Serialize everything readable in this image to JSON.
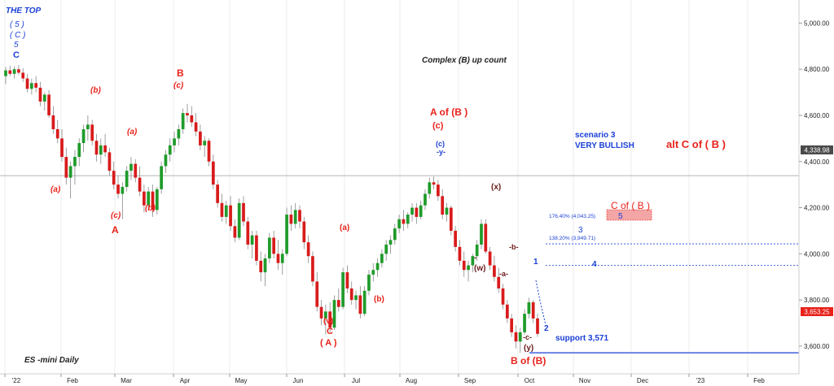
{
  "chart_data": {
    "type": "candlestick",
    "instrument_label": "ES -mini Daily",
    "heading": "Complex (B) up count",
    "y_axis": {
      "ticks": [
        "5,000.00",
        "4,800.00",
        "4,600.00",
        "4,400.00",
        "4,200.00",
        "4,000.00",
        "3,800.00",
        "3,600.00"
      ],
      "ylim": [
        3480,
        5100
      ],
      "tick_values": [
        5000,
        4800,
        4600,
        4400,
        4200,
        4000,
        3800,
        3600
      ]
    },
    "x_axis": {
      "labels": [
        "'22",
        "Feb",
        "Mar",
        "Apr",
        "May",
        "Jun",
        "Jul",
        "Aug",
        "Sep",
        "Oct",
        "Nov",
        "Dec",
        "'23",
        "Feb"
      ]
    },
    "price_tags": [
      {
        "value": 4338.98,
        "label": "4,338.98",
        "color": "#4a4a4a"
      },
      {
        "value": 3653.25,
        "label": "3,653.25",
        "color": "#e8221b"
      }
    ],
    "support_line": {
      "value": 3571,
      "label": "support 3,571",
      "color": "#1a3fd6"
    },
    "fib_levels": [
      {
        "value": 4043.25,
        "label": "176.40% (4,043.25)"
      },
      {
        "value": 3949.71,
        "label": "138.20% (3,949.71)"
      }
    ],
    "target_box_label": "C of ( B )",
    "target_box_wave": "5",
    "scenario": {
      "line1": "scenario 3",
      "line2": "VERY BULLISH"
    },
    "alt_label": "alt C of ( B )",
    "projected_waves": [
      "1",
      "2",
      "3",
      "4",
      "5"
    ],
    "top_labels": [
      "THE TOP",
      "( 5 )",
      "( C )",
      "5",
      "C"
    ],
    "wave_labels": {
      "b_small_1": "(b)",
      "a_small_1": "(a)",
      "A_big": "A",
      "c_small_1": "(c)",
      "a_small_2": "(a)",
      "b_small_2": "(b)",
      "B_big": "B",
      "c_small_2": "(c)",
      "a_small_3": "(a)",
      "v_small": "(v)",
      "C_big": "C",
      "A_paren": "( A )",
      "b_small_3": "(b)",
      "c_small_blue": "(c)",
      "y_small": "-y-",
      "AofB": "A of (B )",
      "c_small_3": "(c)",
      "x_small": "(x)",
      "w_small": "(w)",
      "w_dash": "-",
      "b_dash": "-b-",
      "a_dash": "-a-",
      "c_dash": "-c-",
      "y_paren": "(y)",
      "BofB": "B of (B)"
    },
    "colors": {
      "up": "#1f9b2a",
      "down": "#d81b1b",
      "wick": "#888888",
      "red_label": "#e8221b",
      "blue_label": "#1a3fd6",
      "dark_label": "#6a1a1a"
    },
    "ohlc_sample_note": "",
    "candles": [
      {
        "o": 4770,
        "h": 4810,
        "l": 4735,
        "c": 4795
      },
      {
        "o": 4795,
        "h": 4815,
        "l": 4770,
        "c": 4780
      },
      {
        "o": 4780,
        "h": 4812,
        "l": 4760,
        "c": 4800
      },
      {
        "o": 4800,
        "h": 4818,
        "l": 4775,
        "c": 4785
      },
      {
        "o": 4785,
        "h": 4805,
        "l": 4745,
        "c": 4760
      },
      {
        "o": 4760,
        "h": 4780,
        "l": 4700,
        "c": 4715
      },
      {
        "o": 4715,
        "h": 4760,
        "l": 4690,
        "c": 4740
      },
      {
        "o": 4740,
        "h": 4770,
        "l": 4700,
        "c": 4720
      },
      {
        "o": 4720,
        "h": 4745,
        "l": 4640,
        "c": 4660
      },
      {
        "o": 4660,
        "h": 4700,
        "l": 4620,
        "c": 4690
      },
      {
        "o": 4690,
        "h": 4710,
        "l": 4590,
        "c": 4600
      },
      {
        "o": 4600,
        "h": 4640,
        "l": 4520,
        "c": 4540
      },
      {
        "o": 4540,
        "h": 4580,
        "l": 4480,
        "c": 4500
      },
      {
        "o": 4500,
        "h": 4540,
        "l": 4400,
        "c": 4420
      },
      {
        "o": 4420,
        "h": 4460,
        "l": 4300,
        "c": 4330
      },
      {
        "o": 4330,
        "h": 4400,
        "l": 4240,
        "c": 4380
      },
      {
        "o": 4380,
        "h": 4450,
        "l": 4300,
        "c": 4420
      },
      {
        "o": 4420,
        "h": 4500,
        "l": 4380,
        "c": 4480
      },
      {
        "o": 4480,
        "h": 4560,
        "l": 4440,
        "c": 4540
      },
      {
        "o": 4540,
        "h": 4600,
        "l": 4490,
        "c": 4560
      },
      {
        "o": 4560,
        "h": 4580,
        "l": 4470,
        "c": 4490
      },
      {
        "o": 4490,
        "h": 4520,
        "l": 4400,
        "c": 4430
      },
      {
        "o": 4430,
        "h": 4500,
        "l": 4390,
        "c": 4470
      },
      {
        "o": 4470,
        "h": 4520,
        "l": 4420,
        "c": 4440
      },
      {
        "o": 4440,
        "h": 4460,
        "l": 4340,
        "c": 4360
      },
      {
        "o": 4360,
        "h": 4400,
        "l": 4280,
        "c": 4300
      },
      {
        "o": 4300,
        "h": 4340,
        "l": 4240,
        "c": 4260
      },
      {
        "o": 4260,
        "h": 4310,
        "l": 4150,
        "c": 4290
      },
      {
        "o": 4290,
        "h": 4380,
        "l": 4270,
        "c": 4360
      },
      {
        "o": 4360,
        "h": 4420,
        "l": 4320,
        "c": 4390
      },
      {
        "o": 4390,
        "h": 4410,
        "l": 4310,
        "c": 4330
      },
      {
        "o": 4330,
        "h": 4380,
        "l": 4250,
        "c": 4270
      },
      {
        "o": 4270,
        "h": 4300,
        "l": 4180,
        "c": 4210
      },
      {
        "o": 4210,
        "h": 4290,
        "l": 4190,
        "c": 4270
      },
      {
        "o": 4270,
        "h": 4300,
        "l": 4160,
        "c": 4190
      },
      {
        "o": 4190,
        "h": 4290,
        "l": 4170,
        "c": 4280
      },
      {
        "o": 4280,
        "h": 4400,
        "l": 4260,
        "c": 4380
      },
      {
        "o": 4380,
        "h": 4450,
        "l": 4350,
        "c": 4430
      },
      {
        "o": 4430,
        "h": 4500,
        "l": 4400,
        "c": 4470
      },
      {
        "o": 4470,
        "h": 4530,
        "l": 4440,
        "c": 4500
      },
      {
        "o": 4500,
        "h": 4560,
        "l": 4470,
        "c": 4540
      },
      {
        "o": 4540,
        "h": 4630,
        "l": 4520,
        "c": 4610
      },
      {
        "o": 4610,
        "h": 4650,
        "l": 4570,
        "c": 4600
      },
      {
        "o": 4600,
        "h": 4640,
        "l": 4550,
        "c": 4570
      },
      {
        "o": 4570,
        "h": 4610,
        "l": 4510,
        "c": 4530
      },
      {
        "o": 4530,
        "h": 4560,
        "l": 4450,
        "c": 4470
      },
      {
        "o": 4470,
        "h": 4510,
        "l": 4420,
        "c": 4490
      },
      {
        "o": 4490,
        "h": 4500,
        "l": 4380,
        "c": 4400
      },
      {
        "o": 4400,
        "h": 4430,
        "l": 4280,
        "c": 4300
      },
      {
        "o": 4300,
        "h": 4320,
        "l": 4200,
        "c": 4220
      },
      {
        "o": 4220,
        "h": 4260,
        "l": 4140,
        "c": 4160
      },
      {
        "o": 4160,
        "h": 4230,
        "l": 4130,
        "c": 4210
      },
      {
        "o": 4210,
        "h": 4250,
        "l": 4100,
        "c": 4120
      },
      {
        "o": 4120,
        "h": 4150,
        "l": 4050,
        "c": 4070
      },
      {
        "o": 4070,
        "h": 4240,
        "l": 4060,
        "c": 4220
      },
      {
        "o": 4220,
        "h": 4250,
        "l": 4120,
        "c": 4140
      },
      {
        "o": 4140,
        "h": 4160,
        "l": 4020,
        "c": 4040
      },
      {
        "o": 4040,
        "h": 4100,
        "l": 3980,
        "c": 4080
      },
      {
        "o": 4080,
        "h": 4100,
        "l": 3950,
        "c": 3970
      },
      {
        "o": 3970,
        "h": 4010,
        "l": 3880,
        "c": 3920
      },
      {
        "o": 3920,
        "h": 4000,
        "l": 3860,
        "c": 3980
      },
      {
        "o": 3980,
        "h": 4090,
        "l": 3960,
        "c": 4070
      },
      {
        "o": 4070,
        "h": 4100,
        "l": 3980,
        "c": 4000
      },
      {
        "o": 4000,
        "h": 4060,
        "l": 3930,
        "c": 3960
      },
      {
        "o": 3960,
        "h": 4020,
        "l": 3910,
        "c": 4000
      },
      {
        "o": 4000,
        "h": 4200,
        "l": 3990,
        "c": 4170
      },
      {
        "o": 4170,
        "h": 4210,
        "l": 4100,
        "c": 4130
      },
      {
        "o": 4130,
        "h": 4220,
        "l": 4110,
        "c": 4190
      },
      {
        "o": 4190,
        "h": 4210,
        "l": 4110,
        "c": 4140
      },
      {
        "o": 4140,
        "h": 4160,
        "l": 4020,
        "c": 4050
      },
      {
        "o": 4050,
        "h": 4080,
        "l": 3960,
        "c": 3990
      },
      {
        "o": 3990,
        "h": 4010,
        "l": 3860,
        "c": 3880
      },
      {
        "o": 3880,
        "h": 3920,
        "l": 3750,
        "c": 3770
      },
      {
        "o": 3770,
        "h": 3800,
        "l": 3690,
        "c": 3720
      },
      {
        "o": 3720,
        "h": 3780,
        "l": 3650,
        "c": 3750
      },
      {
        "o": 3750,
        "h": 3790,
        "l": 3660,
        "c": 3680
      },
      {
        "o": 3680,
        "h": 3820,
        "l": 3670,
        "c": 3800
      },
      {
        "o": 3800,
        "h": 3850,
        "l": 3750,
        "c": 3770
      },
      {
        "o": 3770,
        "h": 3940,
        "l": 3760,
        "c": 3920
      },
      {
        "o": 3920,
        "h": 3950,
        "l": 3830,
        "c": 3850
      },
      {
        "o": 3850,
        "h": 3880,
        "l": 3780,
        "c": 3800
      },
      {
        "o": 3800,
        "h": 3840,
        "l": 3760,
        "c": 3820
      },
      {
        "o": 3820,
        "h": 3860,
        "l": 3720,
        "c": 3740
      },
      {
        "o": 3740,
        "h": 3860,
        "l": 3730,
        "c": 3840
      },
      {
        "o": 3840,
        "h": 3930,
        "l": 3820,
        "c": 3910
      },
      {
        "o": 3910,
        "h": 3960,
        "l": 3880,
        "c": 3930
      },
      {
        "o": 3930,
        "h": 3980,
        "l": 3900,
        "c": 3960
      },
      {
        "o": 3960,
        "h": 4020,
        "l": 3940,
        "c": 4000
      },
      {
        "o": 4000,
        "h": 4060,
        "l": 3970,
        "c": 4040
      },
      {
        "o": 4040,
        "h": 4080,
        "l": 4000,
        "c": 4060
      },
      {
        "o": 4060,
        "h": 4130,
        "l": 4040,
        "c": 4110
      },
      {
        "o": 4110,
        "h": 4170,
        "l": 4090,
        "c": 4150
      },
      {
        "o": 4150,
        "h": 4190,
        "l": 4100,
        "c": 4130
      },
      {
        "o": 4130,
        "h": 4180,
        "l": 4110,
        "c": 4170
      },
      {
        "o": 4170,
        "h": 4220,
        "l": 4140,
        "c": 4200
      },
      {
        "o": 4200,
        "h": 4220,
        "l": 4130,
        "c": 4160
      },
      {
        "o": 4160,
        "h": 4230,
        "l": 4150,
        "c": 4210
      },
      {
        "o": 4210,
        "h": 4280,
        "l": 4190,
        "c": 4260
      },
      {
        "o": 4260,
        "h": 4330,
        "l": 4240,
        "c": 4310
      },
      {
        "o": 4310,
        "h": 4335,
        "l": 4280,
        "c": 4300
      },
      {
        "o": 4300,
        "h": 4320,
        "l": 4230,
        "c": 4250
      },
      {
        "o": 4250,
        "h": 4280,
        "l": 4150,
        "c": 4170
      },
      {
        "o": 4170,
        "h": 4220,
        "l": 4140,
        "c": 4200
      },
      {
        "o": 4200,
        "h": 4210,
        "l": 4080,
        "c": 4100
      },
      {
        "o": 4100,
        "h": 4120,
        "l": 4010,
        "c": 4030
      },
      {
        "o": 4030,
        "h": 4060,
        "l": 3950,
        "c": 3970
      },
      {
        "o": 3970,
        "h": 4010,
        "l": 3900,
        "c": 3930
      },
      {
        "o": 3930,
        "h": 3970,
        "l": 3880,
        "c": 3950
      },
      {
        "o": 3950,
        "h": 4000,
        "l": 3920,
        "c": 3990
      },
      {
        "o": 3990,
        "h": 4060,
        "l": 3970,
        "c": 4040
      },
      {
        "o": 4040,
        "h": 4150,
        "l": 4020,
        "c": 4130
      },
      {
        "o": 4130,
        "h": 4150,
        "l": 4000,
        "c": 4010
      },
      {
        "o": 4010,
        "h": 4030,
        "l": 3930,
        "c": 3950
      },
      {
        "o": 3950,
        "h": 3990,
        "l": 3880,
        "c": 3900
      },
      {
        "o": 3900,
        "h": 3940,
        "l": 3830,
        "c": 3850
      },
      {
        "o": 3850,
        "h": 3870,
        "l": 3760,
        "c": 3780
      },
      {
        "o": 3780,
        "h": 3800,
        "l": 3700,
        "c": 3720
      },
      {
        "o": 3720,
        "h": 3740,
        "l": 3640,
        "c": 3660
      },
      {
        "o": 3660,
        "h": 3690,
        "l": 3590,
        "c": 3620
      },
      {
        "o": 3620,
        "h": 3680,
        "l": 3571,
        "c": 3660
      },
      {
        "o": 3660,
        "h": 3760,
        "l": 3650,
        "c": 3740
      },
      {
        "o": 3740,
        "h": 3810,
        "l": 3720,
        "c": 3790
      },
      {
        "o": 3790,
        "h": 3800,
        "l": 3700,
        "c": 3720
      },
      {
        "o": 3720,
        "h": 3740,
        "l": 3640,
        "c": 3653.25
      }
    ]
  }
}
